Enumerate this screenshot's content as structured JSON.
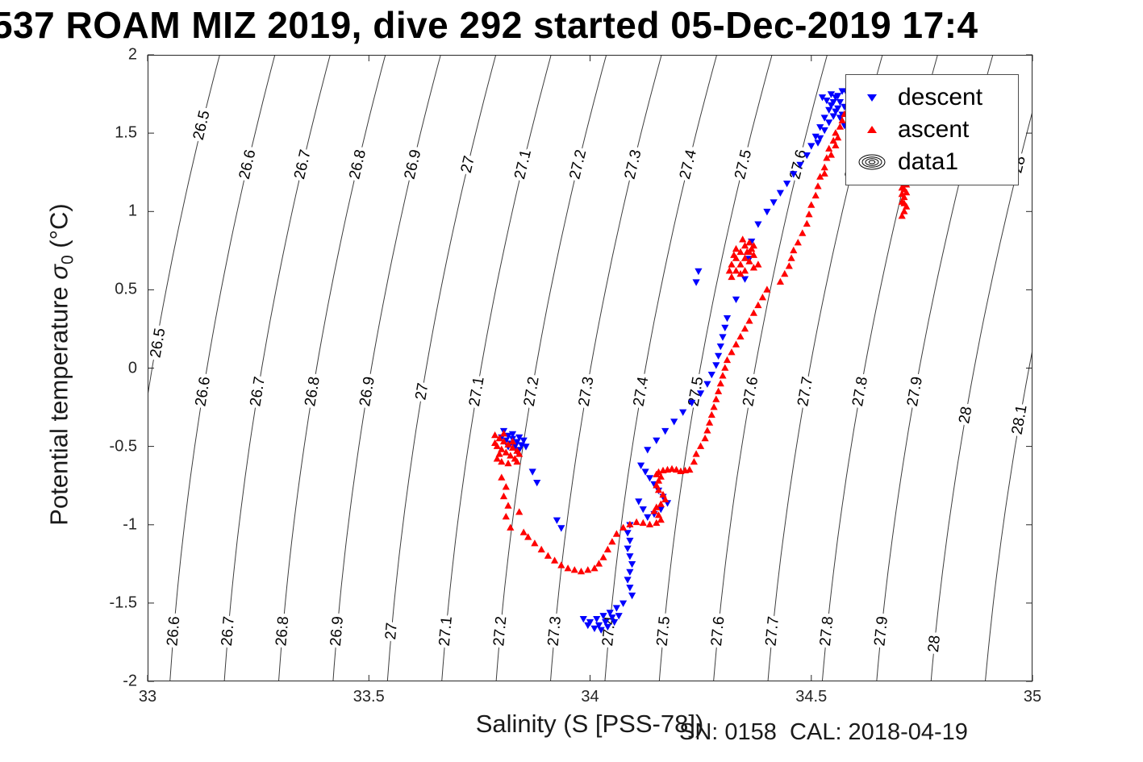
{
  "title": "537 ROAM MIZ 2019, dive 292 started 05-Dec-2019 17:4",
  "annotation": "SN: 0158  CAL: 2018-04-19",
  "axes": {
    "xlabel": "Salinity (S [PSS-78])",
    "ylabel_pre": "Potential temperature ",
    "ylabel_sigma": "σ",
    "ylabel_sub": "0",
    "ylabel_post": " (°C)",
    "xtick_labels": [
      "33",
      "33.5",
      "34",
      "34.5",
      "35"
    ],
    "ytick_labels": [
      "-2",
      "-1.5",
      "-1",
      "-0.5",
      "0",
      "0.5",
      "1",
      "1.5",
      "2"
    ]
  },
  "legend": {
    "items": [
      {
        "label": "descent",
        "marker": "triangle-down-icon",
        "color": "#0000ff"
      },
      {
        "label": "ascent",
        "marker": "triangle-up-icon",
        "color": "#ff0000"
      },
      {
        "label": "data1",
        "marker": "contour-rings-icon",
        "color": "#000000"
      }
    ]
  },
  "chart_data": {
    "type": "scatter",
    "title": "537 ROAM MIZ 2019, dive 292 started 05-Dec-2019 17:4",
    "xlabel": "Salinity (S [PSS-78])",
    "ylabel": "Potential temperature σ0 (°C)",
    "xlim": [
      33,
      35
    ],
    "ylim": [
      -2,
      2
    ],
    "xticks": [
      33,
      33.5,
      34,
      34.5,
      35
    ],
    "yticks": [
      -2,
      -1.5,
      -1,
      -0.5,
      0,
      0.5,
      1,
      1.5,
      2
    ],
    "grid": false,
    "legend_position": "top-right",
    "series": [
      {
        "name": "descent",
        "marker": "triangle-down",
        "color": "#0000ff",
        "points": [
          [
            33.805,
            -0.4
          ],
          [
            33.815,
            -0.43
          ],
          [
            33.825,
            -0.45
          ],
          [
            33.835,
            -0.47
          ],
          [
            33.845,
            -0.49
          ],
          [
            33.81,
            -0.46
          ],
          [
            33.82,
            -0.48
          ],
          [
            33.83,
            -0.5
          ],
          [
            33.84,
            -0.52
          ],
          [
            33.8,
            -0.44
          ],
          [
            33.85,
            -0.46
          ],
          [
            33.825,
            -0.42
          ],
          [
            33.84,
            -0.44
          ],
          [
            33.855,
            -0.5
          ],
          [
            33.815,
            -0.5
          ],
          [
            33.835,
            -0.53
          ],
          [
            33.87,
            -0.66
          ],
          [
            33.88,
            -0.73
          ],
          [
            33.935,
            -1.02
          ],
          [
            33.925,
            -0.97
          ],
          [
            34.09,
            -1.0
          ],
          [
            34.085,
            -1.05
          ],
          [
            34.09,
            -1.1
          ],
          [
            34.085,
            -1.15
          ],
          [
            34.09,
            -1.2
          ],
          [
            34.095,
            -1.25
          ],
          [
            34.09,
            -1.3
          ],
          [
            34.085,
            -1.35
          ],
          [
            34.09,
            -1.4
          ],
          [
            34.095,
            -1.45
          ],
          [
            34.075,
            -1.5
          ],
          [
            34.06,
            -1.53
          ],
          [
            34.045,
            -1.56
          ],
          [
            34.03,
            -1.58
          ],
          [
            34.015,
            -1.6
          ],
          [
            34.0,
            -1.62
          ],
          [
            33.985,
            -1.6
          ],
          [
            33.995,
            -1.64
          ],
          [
            34.01,
            -1.66
          ],
          [
            34.025,
            -1.67
          ],
          [
            34.04,
            -1.65
          ],
          [
            34.055,
            -1.62
          ],
          [
            34.065,
            -1.58
          ],
          [
            34.05,
            -1.59
          ],
          [
            34.035,
            -1.62
          ],
          [
            34.02,
            -1.64
          ],
          [
            34.115,
            -0.62
          ],
          [
            34.125,
            -0.66
          ],
          [
            34.135,
            -0.7
          ],
          [
            34.145,
            -0.74
          ],
          [
            34.155,
            -0.78
          ],
          [
            34.165,
            -0.82
          ],
          [
            34.175,
            -0.86
          ],
          [
            34.16,
            -0.9
          ],
          [
            34.145,
            -0.93
          ],
          [
            34.13,
            -0.95
          ],
          [
            34.12,
            -0.9
          ],
          [
            34.11,
            -0.85
          ],
          [
            34.13,
            -0.52
          ],
          [
            34.15,
            -0.46
          ],
          [
            34.17,
            -0.4
          ],
          [
            34.19,
            -0.34
          ],
          [
            34.21,
            -0.28
          ],
          [
            34.23,
            -0.22
          ],
          [
            34.25,
            -0.16
          ],
          [
            34.265,
            -0.1
          ],
          [
            34.275,
            -0.04
          ],
          [
            34.285,
            0.02
          ],
          [
            34.29,
            0.08
          ],
          [
            34.295,
            0.14
          ],
          [
            34.3,
            0.2
          ],
          [
            34.305,
            0.26
          ],
          [
            34.31,
            0.32
          ],
          [
            34.24,
            0.55
          ],
          [
            34.245,
            0.62
          ],
          [
            34.33,
            0.44
          ],
          [
            34.35,
            0.57
          ],
          [
            34.36,
            0.7
          ],
          [
            34.365,
            0.81
          ],
          [
            34.38,
            0.92
          ],
          [
            34.4,
            1.0
          ],
          [
            34.415,
            1.06
          ],
          [
            34.43,
            1.12
          ],
          [
            34.445,
            1.18
          ],
          [
            34.46,
            1.24
          ],
          [
            34.475,
            1.3
          ],
          [
            34.49,
            1.36
          ],
          [
            34.5,
            1.42
          ],
          [
            34.51,
            1.48
          ],
          [
            34.52,
            1.54
          ],
          [
            34.53,
            1.6
          ],
          [
            34.54,
            1.65
          ],
          [
            34.55,
            1.7
          ],
          [
            34.56,
            1.74
          ],
          [
            34.57,
            1.77
          ],
          [
            34.58,
            1.76
          ],
          [
            34.59,
            1.73
          ],
          [
            34.6,
            1.7
          ],
          [
            34.605,
            1.66
          ],
          [
            34.61,
            1.62
          ],
          [
            34.6,
            1.58
          ],
          [
            34.595,
            1.54
          ],
          [
            34.585,
            1.5
          ],
          [
            34.575,
            1.55
          ],
          [
            34.565,
            1.6
          ],
          [
            34.555,
            1.64
          ],
          [
            34.545,
            1.68
          ],
          [
            34.535,
            1.71
          ],
          [
            34.525,
            1.73
          ],
          [
            34.545,
            1.75
          ],
          [
            34.555,
            1.73
          ],
          [
            34.565,
            1.7
          ],
          [
            34.575,
            1.67
          ],
          [
            34.585,
            1.64
          ],
          [
            34.57,
            1.62
          ],
          [
            34.56,
            1.66
          ],
          [
            34.55,
            1.61
          ],
          [
            34.54,
            1.57
          ],
          [
            34.53,
            1.52
          ],
          [
            34.52,
            1.47
          ],
          [
            34.515,
            1.44
          ]
        ]
      },
      {
        "name": "ascent",
        "marker": "triangle-up",
        "color": "#ff0000",
        "points": [
          [
            33.785,
            -0.43
          ],
          [
            33.795,
            -0.45
          ],
          [
            33.805,
            -0.47
          ],
          [
            33.815,
            -0.49
          ],
          [
            33.825,
            -0.51
          ],
          [
            33.835,
            -0.53
          ],
          [
            33.79,
            -0.5
          ],
          [
            33.8,
            -0.52
          ],
          [
            33.81,
            -0.54
          ],
          [
            33.82,
            -0.56
          ],
          [
            33.83,
            -0.58
          ],
          [
            33.8,
            -0.6
          ],
          [
            33.815,
            -0.61
          ],
          [
            33.785,
            -0.48
          ],
          [
            33.795,
            -0.55
          ],
          [
            33.825,
            -0.47
          ],
          [
            33.84,
            -0.55
          ],
          [
            33.835,
            -0.6
          ],
          [
            33.79,
            -0.58
          ],
          [
            33.805,
            -0.42
          ],
          [
            33.8,
            -0.7
          ],
          [
            33.81,
            -0.76
          ],
          [
            33.805,
            -0.82
          ],
          [
            33.815,
            -0.88
          ],
          [
            33.81,
            -0.95
          ],
          [
            33.82,
            -1.02
          ],
          [
            33.84,
            -0.92
          ],
          [
            33.85,
            -1.05
          ],
          [
            33.86,
            -1.08
          ],
          [
            33.875,
            -1.12
          ],
          [
            33.89,
            -1.16
          ],
          [
            33.905,
            -1.2
          ],
          [
            33.92,
            -1.23
          ],
          [
            33.935,
            -1.26
          ],
          [
            33.95,
            -1.28
          ],
          [
            33.965,
            -1.29
          ],
          [
            33.98,
            -1.3
          ],
          [
            33.995,
            -1.29
          ],
          [
            34.01,
            -1.28
          ],
          [
            34.02,
            -1.25
          ],
          [
            34.03,
            -1.21
          ],
          [
            34.04,
            -1.16
          ],
          [
            34.05,
            -1.11
          ],
          [
            34.06,
            -1.06
          ],
          [
            34.075,
            -1.02
          ],
          [
            34.09,
            -1.0
          ],
          [
            34.105,
            -0.985
          ],
          [
            34.12,
            -0.99
          ],
          [
            34.135,
            -1.0
          ],
          [
            34.15,
            -0.99
          ],
          [
            34.16,
            -0.97
          ],
          [
            34.155,
            -0.94
          ],
          [
            34.145,
            -0.915
          ],
          [
            34.15,
            -0.89
          ],
          [
            34.16,
            -0.87
          ],
          [
            34.17,
            -0.84
          ],
          [
            34.165,
            -0.81
          ],
          [
            34.155,
            -0.78
          ],
          [
            34.15,
            -0.75
          ],
          [
            34.155,
            -0.72
          ],
          [
            34.16,
            -0.695
          ],
          [
            34.15,
            -0.68
          ],
          [
            34.155,
            -0.665
          ],
          [
            34.165,
            -0.655
          ],
          [
            34.175,
            -0.65
          ],
          [
            34.185,
            -0.645
          ],
          [
            34.195,
            -0.65
          ],
          [
            34.205,
            -0.66
          ],
          [
            34.215,
            -0.655
          ],
          [
            34.225,
            -0.65
          ],
          [
            34.235,
            -0.6
          ],
          [
            34.24,
            -0.55
          ],
          [
            34.25,
            -0.5
          ],
          [
            34.26,
            -0.45
          ],
          [
            34.265,
            -0.4
          ],
          [
            34.27,
            -0.35
          ],
          [
            34.275,
            -0.3
          ],
          [
            34.28,
            -0.25
          ],
          [
            34.285,
            -0.2
          ],
          [
            34.29,
            -0.15
          ],
          [
            34.295,
            -0.1
          ],
          [
            34.3,
            -0.05
          ],
          [
            34.305,
            0.0
          ],
          [
            34.31,
            0.05
          ],
          [
            34.32,
            0.1
          ],
          [
            34.33,
            0.15
          ],
          [
            34.34,
            0.2
          ],
          [
            34.35,
            0.25
          ],
          [
            34.36,
            0.3
          ],
          [
            34.37,
            0.35
          ],
          [
            34.38,
            0.4
          ],
          [
            34.39,
            0.45
          ],
          [
            34.4,
            0.5
          ],
          [
            34.32,
            0.58
          ],
          [
            34.33,
            0.62
          ],
          [
            34.34,
            0.66
          ],
          [
            34.35,
            0.7
          ],
          [
            34.36,
            0.74
          ],
          [
            34.37,
            0.78
          ],
          [
            34.33,
            0.7
          ],
          [
            34.34,
            0.74
          ],
          [
            34.35,
            0.78
          ],
          [
            34.36,
            0.68
          ],
          [
            34.37,
            0.72
          ],
          [
            34.38,
            0.66
          ],
          [
            34.32,
            0.66
          ],
          [
            34.33,
            0.76
          ],
          [
            34.35,
            0.62
          ],
          [
            34.36,
            0.8
          ],
          [
            34.37,
            0.64
          ],
          [
            34.34,
            0.6
          ],
          [
            34.345,
            0.82
          ],
          [
            34.355,
            0.74
          ],
          [
            34.365,
            0.76
          ],
          [
            34.325,
            0.72
          ],
          [
            34.315,
            0.62
          ],
          [
            34.43,
            0.55
          ],
          [
            34.44,
            0.6
          ],
          [
            34.45,
            0.65
          ],
          [
            34.455,
            0.7
          ],
          [
            34.46,
            0.75
          ],
          [
            34.47,
            0.8
          ],
          [
            34.48,
            0.86
          ],
          [
            34.49,
            0.92
          ],
          [
            34.495,
            0.98
          ],
          [
            34.5,
            1.04
          ],
          [
            34.51,
            1.1
          ],
          [
            34.515,
            1.16
          ],
          [
            34.52,
            1.22
          ],
          [
            34.53,
            1.28
          ],
          [
            34.535,
            1.34
          ],
          [
            34.54,
            1.4
          ],
          [
            34.55,
            1.45
          ],
          [
            34.555,
            1.5
          ],
          [
            34.565,
            1.54
          ],
          [
            34.57,
            1.58
          ],
          [
            34.575,
            1.62
          ],
          [
            34.555,
            1.42
          ],
          [
            34.545,
            1.36
          ],
          [
            34.56,
            1.47
          ],
          [
            34.53,
            1.24
          ],
          [
            34.705,
            0.97
          ],
          [
            34.71,
            1.0
          ],
          [
            34.715,
            1.03
          ],
          [
            34.705,
            1.06
          ],
          [
            34.71,
            1.09
          ],
          [
            34.715,
            1.12
          ],
          [
            34.705,
            1.15
          ],
          [
            34.71,
            1.18
          ],
          [
            34.715,
            1.21
          ],
          [
            34.71,
            1.05
          ],
          [
            34.705,
            1.11
          ],
          [
            34.715,
            1.17
          ],
          [
            34.71,
            1.14
          ],
          [
            34.705,
            1.19
          ],
          [
            34.71,
            1.24
          ]
        ]
      },
      {
        "name": "data1",
        "type": "isopycnal-contours",
        "color": "#3d3d3d",
        "levels": [
          26.5,
          26.6,
          26.7,
          26.8,
          26.9,
          27,
          27.1,
          27.2,
          27.3,
          27.4,
          27.5,
          27.6,
          27.7,
          27.8,
          27.9,
          28,
          28.1
        ],
        "label_bands_T": [
          1.3,
          -0.15,
          -1.68
        ]
      }
    ]
  }
}
